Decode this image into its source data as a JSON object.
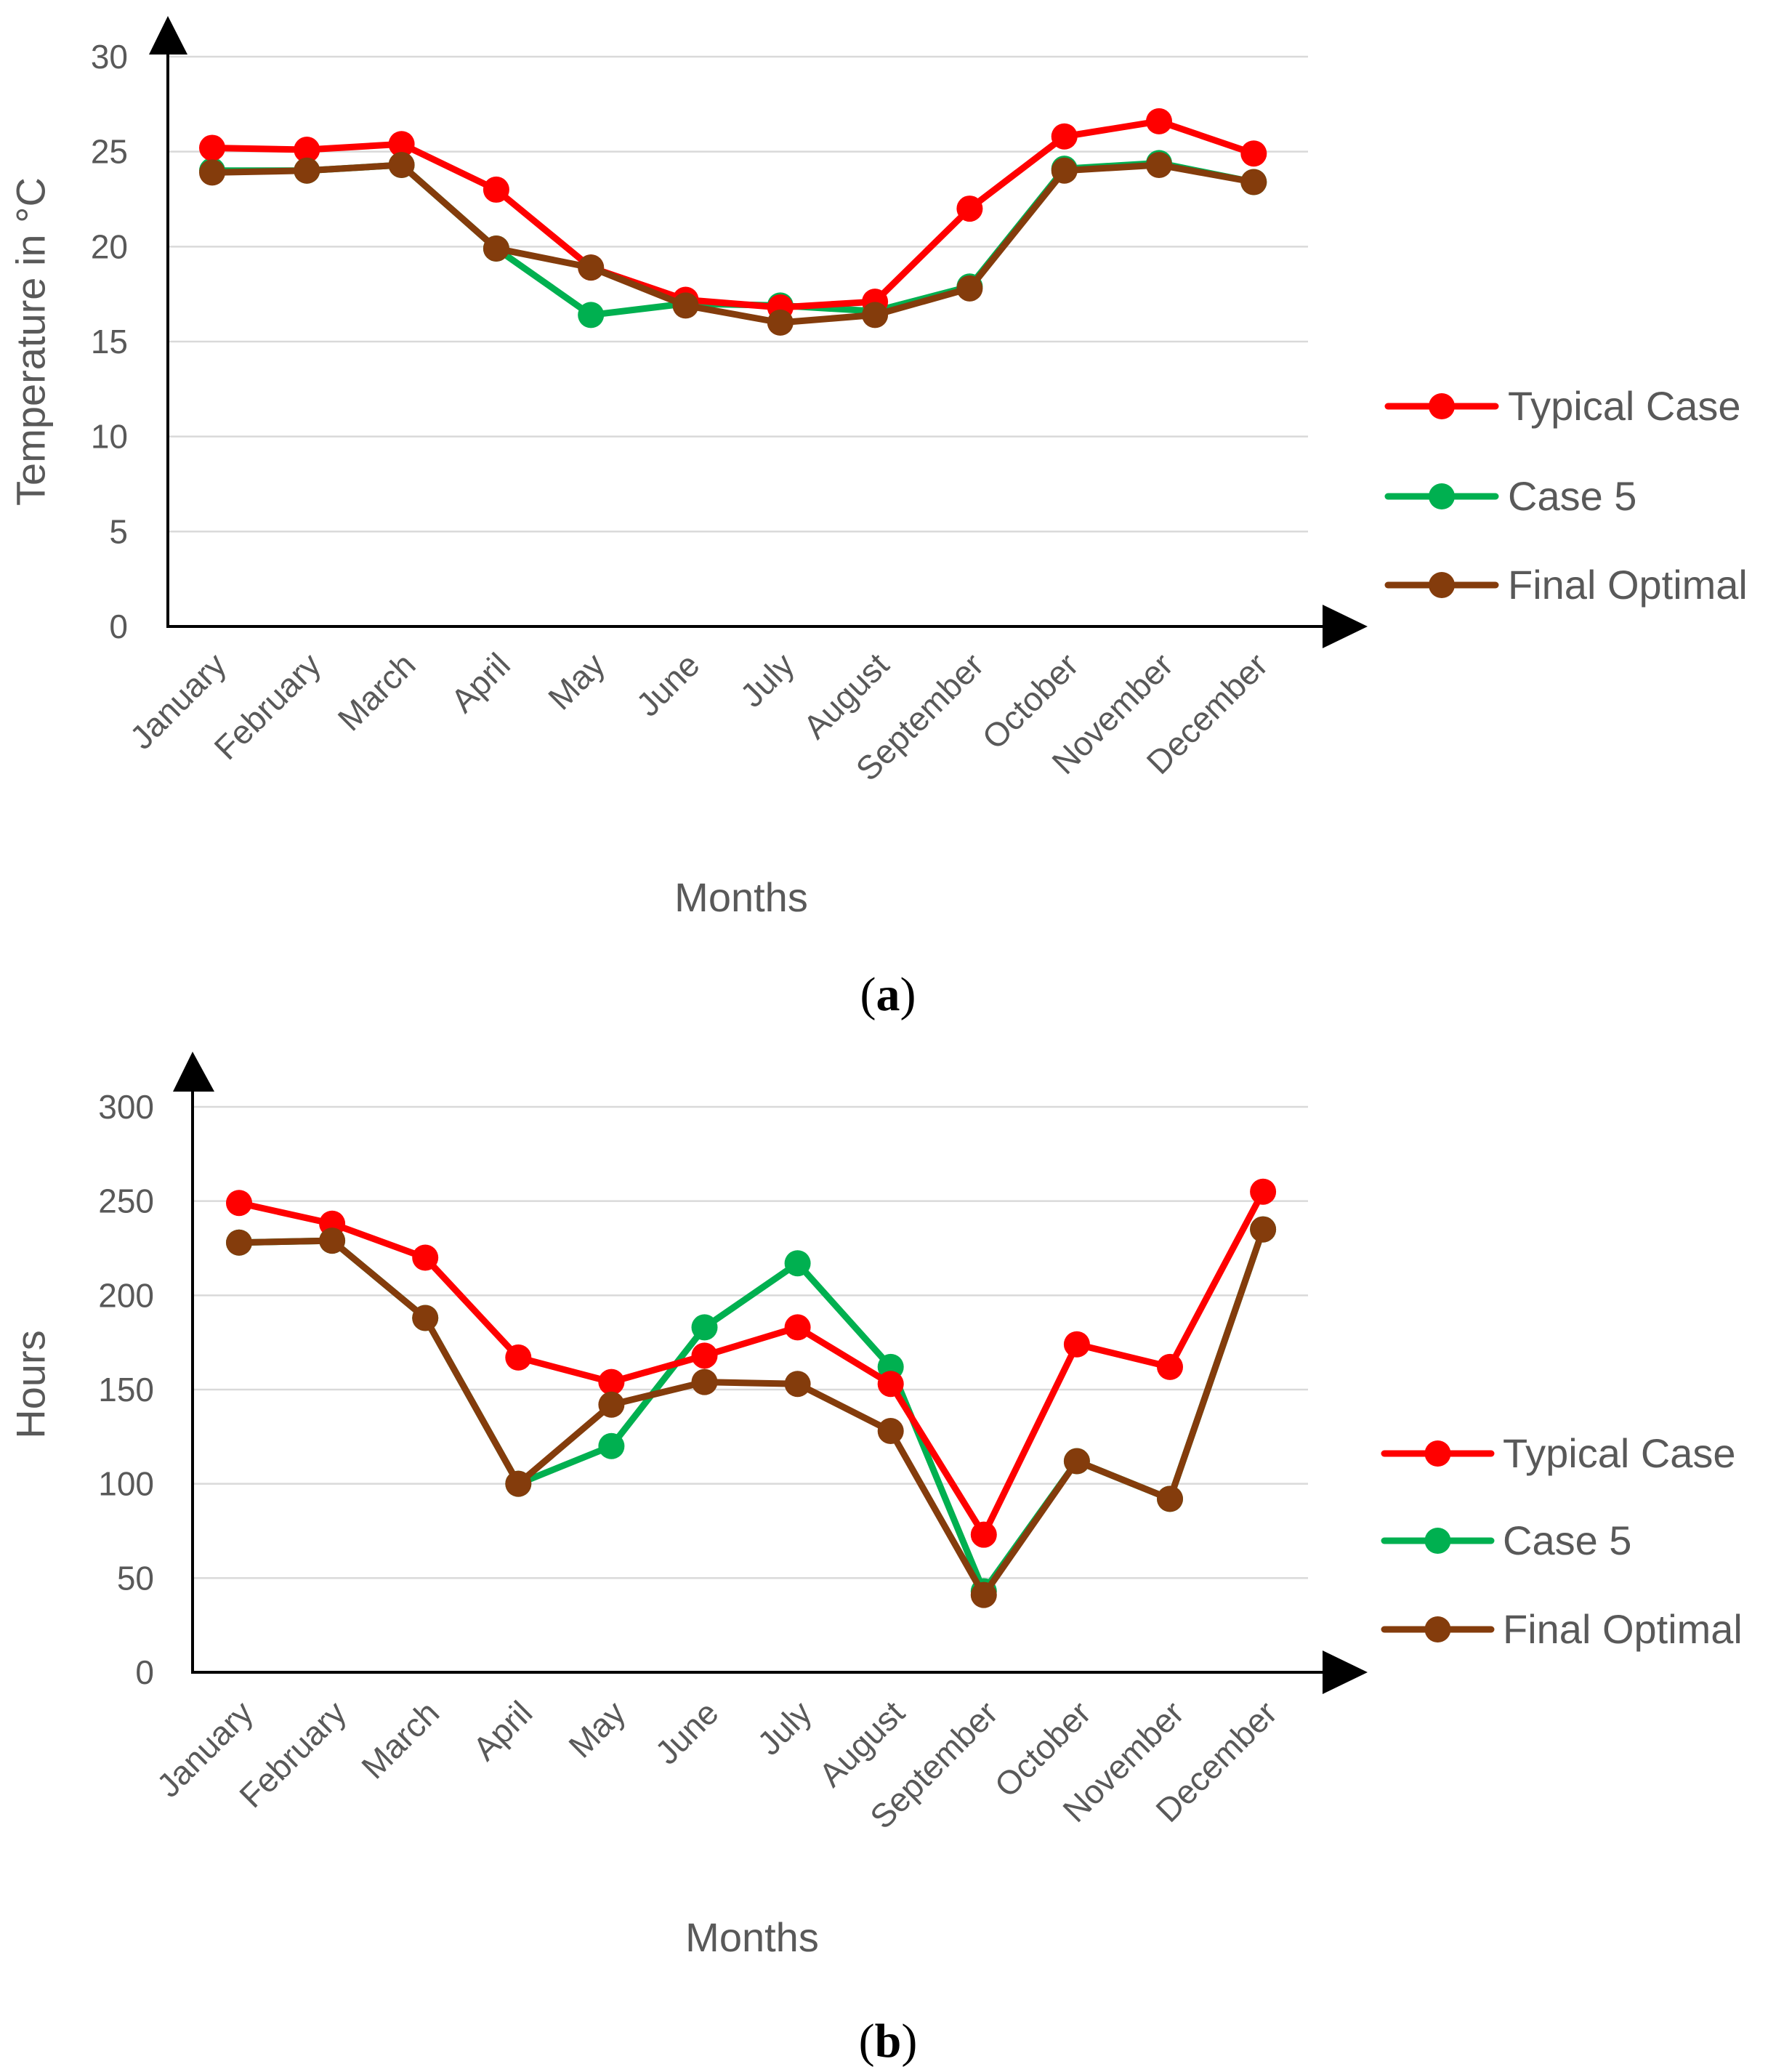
{
  "colors": {
    "typical": "#ff0000",
    "case5": "#00b050",
    "final": "#843c0c",
    "grid": "#d9d9d9",
    "axis": "#000000",
    "text": "#595959"
  },
  "chart_data": [
    {
      "id": "a",
      "type": "line",
      "caption_letter": "a",
      "title": "",
      "xlabel": "Months",
      "ylabel": "Temperature in °C",
      "ylim": [
        0,
        30
      ],
      "yticks": [
        0,
        5,
        10,
        15,
        20,
        25,
        30
      ],
      "grid": true,
      "legend": "right",
      "categories": [
        "January",
        "February",
        "March",
        "April",
        "May",
        "June",
        "July",
        "August",
        "September",
        "October",
        "November",
        "December"
      ],
      "series": [
        {
          "key": "typical",
          "name": "Typical Case",
          "values": [
            25.2,
            25.1,
            25.4,
            23.0,
            18.9,
            17.2,
            16.8,
            17.1,
            22.0,
            25.8,
            26.6,
            24.9
          ]
        },
        {
          "key": "case5",
          "name": "Case 5",
          "values": [
            24.0,
            24.0,
            24.3,
            19.9,
            16.4,
            17.0,
            16.9,
            16.6,
            17.9,
            24.1,
            24.4,
            23.4
          ]
        },
        {
          "key": "final",
          "name": "Final Optimal",
          "values": [
            23.9,
            24.0,
            24.3,
            19.9,
            18.9,
            16.9,
            16.0,
            16.4,
            17.8,
            24.0,
            24.3,
            23.4
          ]
        }
      ]
    },
    {
      "id": "b",
      "type": "line",
      "caption_letter": "b",
      "title": "",
      "xlabel": "Months",
      "ylabel": "Hours",
      "ylim": [
        0,
        300
      ],
      "yticks": [
        0,
        50,
        100,
        150,
        200,
        250,
        300
      ],
      "grid": true,
      "legend": "right",
      "categories": [
        "January",
        "February",
        "March",
        "April",
        "May",
        "June",
        "July",
        "August",
        "September",
        "October",
        "November",
        "December"
      ],
      "series": [
        {
          "key": "typical",
          "name": "Typical Case",
          "values": [
            249,
            238,
            220,
            167,
            154,
            168,
            183,
            153,
            73,
            174,
            162,
            255
          ]
        },
        {
          "key": "case5",
          "name": "Case 5",
          "values": [
            228,
            229,
            188,
            100,
            120,
            183,
            217,
            162,
            43,
            112,
            92,
            235
          ]
        },
        {
          "key": "final",
          "name": "Final Optimal",
          "values": [
            228,
            229,
            188,
            100,
            142,
            154,
            153,
            128,
            41,
            112,
            92,
            235
          ]
        }
      ]
    }
  ]
}
